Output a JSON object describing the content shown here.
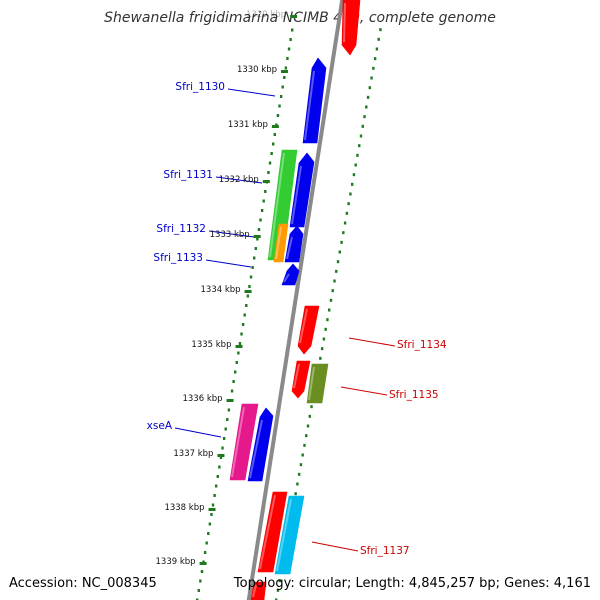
{
  "title": "Shewanella frigidimarina NCIMB 400, complete genome",
  "footer": {
    "accession": "Accession: NC_008345",
    "topology": "Topology: circular; Length: 4,845,257 bp; Genes: 4,161"
  },
  "colors": {
    "backbone": "#8a8a8a",
    "tick": "#1f7a1f",
    "forward_label": "#0000cc",
    "reverse_label": "#cc0000"
  },
  "kbp_labels": [
    {
      "kbp": 1329,
      "text": "1329 kbp"
    },
    {
      "kbp": 1330,
      "text": "1330 kbp"
    },
    {
      "kbp": 1331,
      "text": "1331 kbp"
    },
    {
      "kbp": 1332,
      "text": "1332 kbp"
    },
    {
      "kbp": 1333,
      "text": "1333 kbp"
    },
    {
      "kbp": 1334,
      "text": "1334 kbp"
    },
    {
      "kbp": 1335,
      "text": "1335 kbp"
    },
    {
      "kbp": 1336,
      "text": "1336 kbp"
    },
    {
      "kbp": 1337,
      "text": "1337 kbp"
    },
    {
      "kbp": 1338,
      "text": "1338 kbp"
    },
    {
      "kbp": 1339,
      "text": "1339 kbp"
    }
  ],
  "gene_labels": [
    {
      "text": "Sfri_1130",
      "strand": "forward"
    },
    {
      "text": "Sfri_1131",
      "strand": "forward"
    },
    {
      "text": "Sfri_1132",
      "strand": "forward"
    },
    {
      "text": "Sfri_1133",
      "strand": "forward"
    },
    {
      "text": "Sfri_1134",
      "strand": "reverse"
    },
    {
      "text": "Sfri_1135",
      "strand": "reverse"
    },
    {
      "text": "xseA",
      "strand": "forward"
    },
    {
      "text": "Sfri_1137",
      "strand": "reverse"
    }
  ],
  "features": [
    {
      "name": "reverse-gene-top",
      "color": "#ff0000",
      "direction": "down"
    },
    {
      "name": "gene-sfri-1130",
      "color": "#0000ee",
      "direction": "up"
    },
    {
      "name": "gene-sfri-1131",
      "color": "#0000ee",
      "direction": "up"
    },
    {
      "name": "cds-sfri-1131-green",
      "color": "#33cc33",
      "direction": "none"
    },
    {
      "name": "cds-sfri-1132-orange",
      "color": "#ff9900",
      "direction": "none"
    },
    {
      "name": "gene-sfri-1132",
      "color": "#0000ee",
      "direction": "up"
    },
    {
      "name": "gene-sfri-1133",
      "color": "#0000ee",
      "direction": "up"
    },
    {
      "name": "gene-sfri-1134",
      "color": "#ff0000",
      "direction": "down"
    },
    {
      "name": "gene-sfri-1135",
      "color": "#ff0000",
      "direction": "down"
    },
    {
      "name": "cds-sfri-1135-olive",
      "color": "#6b8e23",
      "direction": "none"
    },
    {
      "name": "cds-xsea-magenta",
      "color": "#e6198c",
      "direction": "none"
    },
    {
      "name": "gene-xsea",
      "color": "#0000ee",
      "direction": "up"
    },
    {
      "name": "gene-sfri-1136",
      "color": "#ff0000",
      "direction": "none"
    },
    {
      "name": "cds-sfri-1137-cyan",
      "color": "#00bbee",
      "direction": "none"
    },
    {
      "name": "reverse-gene-bottom",
      "color": "#ff0000",
      "direction": "none"
    }
  ]
}
